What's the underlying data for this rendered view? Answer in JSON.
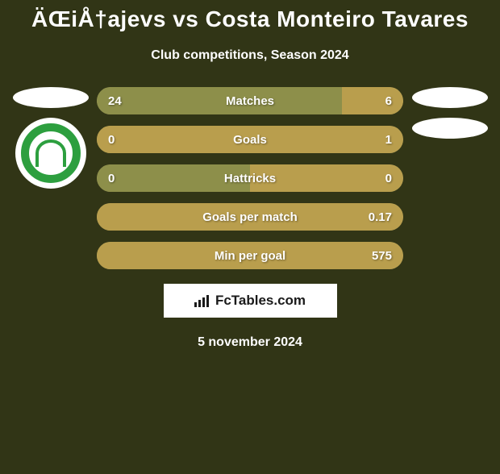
{
  "title": "ÄŒiÅ†ajevs vs Costa Monteiro Tavares",
  "subtitle": "Club competitions, Season 2024",
  "date": "5 november 2024",
  "attribution": "FcTables.com",
  "colors": {
    "background": "#313516",
    "barLeft": "#8d8f4a",
    "barRight": "#b99e4d",
    "barTrack": "#a59d5e"
  },
  "stats": [
    {
      "label": "Matches",
      "leftVal": "24",
      "rightVal": "6",
      "leftPct": 80,
      "rightPct": 20,
      "leftColor": "#8d8f4a",
      "rightColor": "#b99e4d"
    },
    {
      "label": "Goals",
      "leftVal": "0",
      "rightVal": "1",
      "leftPct": 0,
      "rightPct": 100,
      "leftColor": "#8d8f4a",
      "rightColor": "#b99e4d"
    },
    {
      "label": "Hattricks",
      "leftVal": "0",
      "rightVal": "0",
      "leftPct": 50,
      "rightPct": 50,
      "leftColor": "#8d8f4a",
      "rightColor": "#b99e4d"
    },
    {
      "label": "Goals per match",
      "leftVal": "",
      "rightVal": "0.17",
      "leftPct": 0,
      "rightPct": 100,
      "leftColor": "#8d8f4a",
      "rightColor": "#b99e4d"
    },
    {
      "label": "Min per goal",
      "leftVal": "",
      "rightVal": "575",
      "leftPct": 0,
      "rightPct": 100,
      "leftColor": "#8d8f4a",
      "rightColor": "#b99e4d"
    }
  ]
}
